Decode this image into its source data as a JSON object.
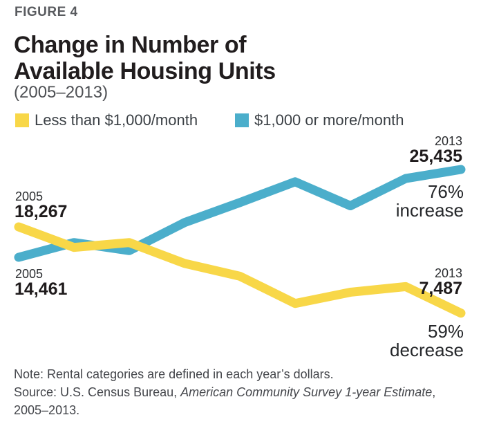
{
  "figure_label": "FIGURE 4",
  "title": {
    "line1": "Change in Number of",
    "line2": "Available Housing Units",
    "subtitle": "(2005–2013)"
  },
  "legend": [
    {
      "label": "Less than $1,000/month",
      "color": "#F8D748"
    },
    {
      "label": "$1,000 or more/month",
      "color": "#4BAECB"
    }
  ],
  "chart_data": {
    "type": "line",
    "title": "Change in Number of Available Housing Units (2005–2013)",
    "x": [
      2005,
      2006,
      2007,
      2008,
      2009,
      2010,
      2011,
      2012,
      2013
    ],
    "series": [
      {
        "id": "units-1000-or-more",
        "name": "$1,000 or more/month",
        "color": "#4BAECB",
        "values": [
          14461,
          16300,
          15300,
          18800,
          21300,
          23900,
          20900,
          24300,
          25435
        ]
      },
      {
        "id": "units-less-than-1000",
        "name": "Less than $1,000/month",
        "color": "#F8D748",
        "values": [
          18267,
          15700,
          16300,
          13700,
          12100,
          8700,
          10100,
          10800,
          7487
        ]
      }
    ],
    "grid": false,
    "axes_shown": false,
    "legend_position": "top",
    "ylim": [
      6500,
      27500
    ],
    "annotations": {
      "yellow_start": {
        "year": "2005",
        "value": "18,267"
      },
      "teal_start": {
        "year": "2005",
        "value": "14,461"
      },
      "teal_end": {
        "year": "2013",
        "value": "25,435"
      },
      "teal_change": {
        "line1": "76%",
        "line2": "increase"
      },
      "yellow_end": {
        "year": "2013",
        "value": "7,487"
      },
      "yellow_change": {
        "line1": "59%",
        "line2": "decrease"
      }
    },
    "layout": {
      "x0": 27,
      "dx": 80,
      "y_base": 539.37,
      "y_per_unit": 0.0115737,
      "stroke_width": 13
    }
  },
  "footer": {
    "note": "Note: Rental categories are defined in each year’s dollars.",
    "source_prefix": "Source: U.S. Census Bureau, ",
    "source_italic": "American Community Survey 1-year Estimate",
    "source_suffix": ",",
    "source_line2": "2005–2013."
  }
}
